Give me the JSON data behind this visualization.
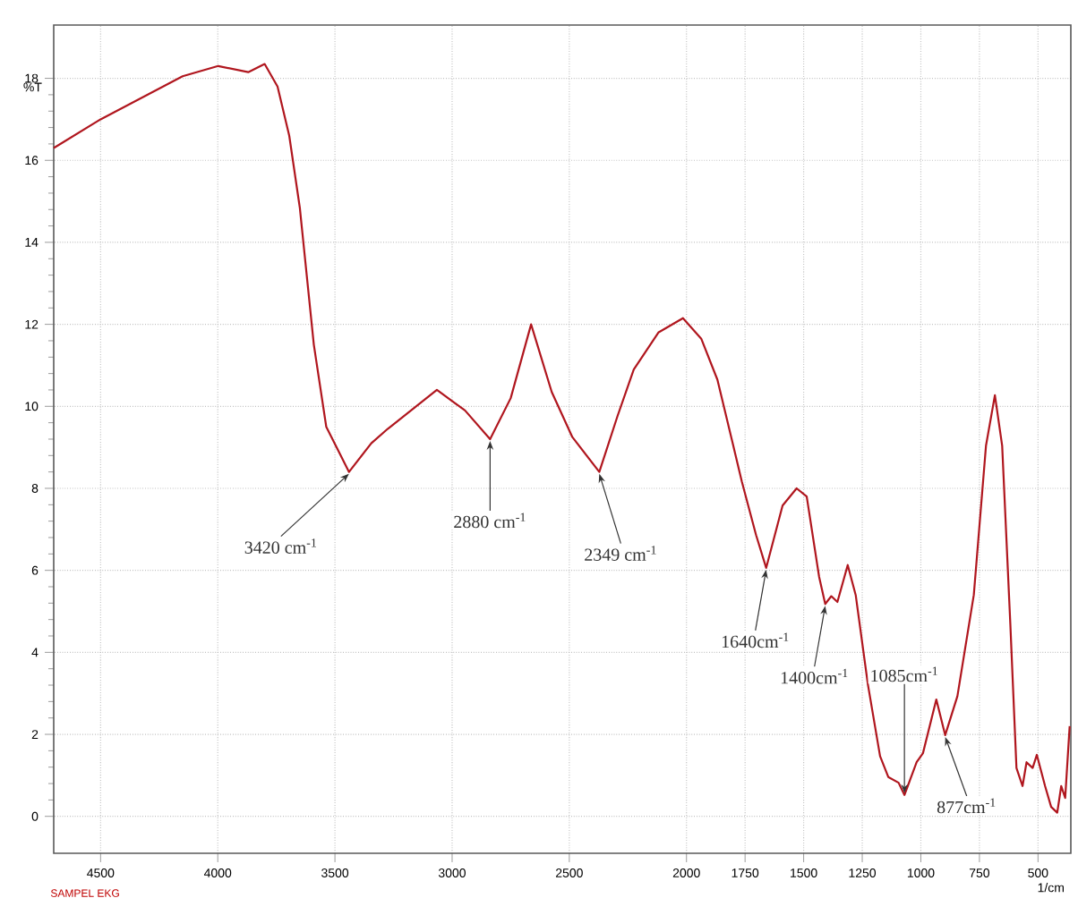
{
  "chart_data": {
    "type": "line",
    "xlabel": "1/cm",
    "ylabel": "%T",
    "x": [
      4700,
      4500,
      4150,
      3998,
      3870,
      3800,
      3745,
      3695,
      3650,
      3590,
      3537,
      3440,
      3345,
      3275,
      3065,
      2945,
      2838,
      2750,
      2663,
      2575,
      2487,
      2372,
      2295,
      2225,
      2120,
      2015,
      1937,
      1868,
      1807,
      1764,
      1703,
      1660,
      1590,
      1530,
      1487,
      1434,
      1408,
      1382,
      1356,
      1312,
      1278,
      1226,
      1174,
      1139,
      1095,
      1070,
      1018,
      991,
      934,
      896,
      844,
      774,
      722,
      684,
      653,
      618,
      592,
      566,
      549,
      523,
      505,
      470,
      444,
      418,
      401,
      384,
      365
    ],
    "series": [
      {
        "color": "#b0161e",
        "values": [
          16.3,
          17.0,
          18.05,
          18.3,
          18.15,
          18.35,
          17.8,
          16.6,
          14.85,
          11.5,
          9.5,
          8.4,
          9.1,
          9.45,
          10.4,
          9.9,
          9.2,
          10.2,
          12.0,
          10.35,
          9.25,
          8.4,
          9.75,
          10.9,
          11.8,
          12.15,
          11.65,
          10.65,
          9.2,
          8.17,
          6.86,
          6.06,
          7.58,
          8.0,
          7.8,
          5.84,
          5.18,
          5.37,
          5.23,
          6.13,
          5.4,
          3.22,
          1.47,
          0.96,
          0.82,
          0.52,
          1.32,
          1.54,
          2.85,
          1.98,
          2.93,
          5.4,
          9.04,
          10.27,
          9.04,
          4.67,
          1.18,
          0.74,
          1.32,
          1.18,
          1.5,
          0.74,
          0.23,
          0.09,
          0.74,
          0.45,
          2.2
        ]
      }
    ],
    "xlim": [
      4700,
      360
    ],
    "ylim": [
      -0.9,
      19.3
    ],
    "xticks": [
      4500,
      4000,
      3500,
      3000,
      2500,
      2000,
      1750,
      1500,
      1250,
      1000,
      750,
      500
    ],
    "yticks": [
      0,
      2,
      4,
      6,
      8,
      10,
      12,
      14,
      16,
      18
    ],
    "grid": true,
    "marker": "none",
    "line_style": "solid",
    "annotations": [
      {
        "text": "3420 cm$^{-1}$",
        "x": 3440,
        "y": 8.4
      },
      {
        "text": "2880 cm$^{-1}$",
        "x": 2838,
        "y": 9.2
      },
      {
        "text": "2349 cm$^{-1}$",
        "x": 2372,
        "y": 8.4
      },
      {
        "text": "1640cm$^{-1}$",
        "x": 1660,
        "y": 6.06
      },
      {
        "text": "1400cm$^{-1}$",
        "x": 1408,
        "y": 5.18
      },
      {
        "text": "1085cm$^{-1}$",
        "x": 1070,
        "y": 0.52
      },
      {
        "text": "877cm$^{-1}$",
        "x": 896,
        "y": 1.98
      },
      "SAMPEL EKG"
    ]
  }
}
